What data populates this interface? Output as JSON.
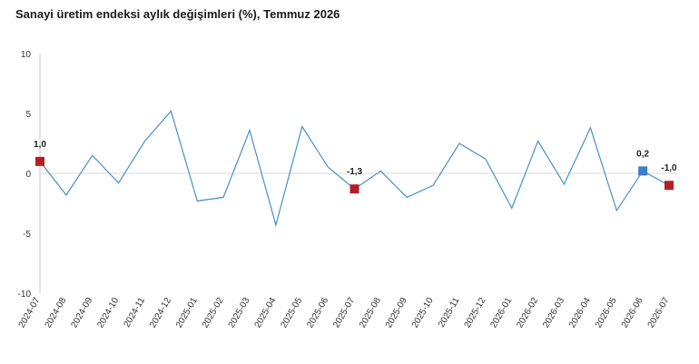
{
  "chart_data": {
    "type": "line",
    "title": "Sanayi üretim endeksi aylık değişimleri (%), Temmuz 2026",
    "xlabel": "",
    "ylabel": "",
    "ylim": [
      -10,
      10
    ],
    "yticks": [
      10,
      5,
      0,
      -5,
      -10
    ],
    "grid": false,
    "categories": [
      "2024-07",
      "2024-08",
      "2024-09",
      "2024-10",
      "2024-11",
      "2024-12",
      "2025-01",
      "2025-02",
      "2025-03",
      "2025-04",
      "2025-05",
      "2025-06",
      "2025-07",
      "2025-08",
      "2025-09",
      "2025-10",
      "2025-11",
      "2025-12",
      "2026-01",
      "2026-02",
      "2026-03",
      "2026-04",
      "2026-05",
      "2026-06",
      "2026-07"
    ],
    "series": [
      {
        "color": "#4a90c4",
        "values": [
          1.0,
          -1.8,
          1.5,
          -0.8,
          2.7,
          5.2,
          -2.3,
          -2.0,
          3.6,
          -4.3,
          3.9,
          0.5,
          -1.3,
          0.2,
          -2.0,
          -1.0,
          2.5,
          1.2,
          -2.9,
          2.7,
          -0.9,
          3.8,
          -3.1,
          0.2,
          -1.0
        ]
      }
    ],
    "highlights": [
      {
        "index": 0,
        "label": "1,0",
        "color": "#b22024"
      },
      {
        "index": 12,
        "label": "-1,3",
        "color": "#b22024"
      },
      {
        "index": 23,
        "label": "0,2",
        "color": "#3d7cc9"
      },
      {
        "index": 24,
        "label": "-1,0",
        "color": "#b22024"
      }
    ]
  }
}
